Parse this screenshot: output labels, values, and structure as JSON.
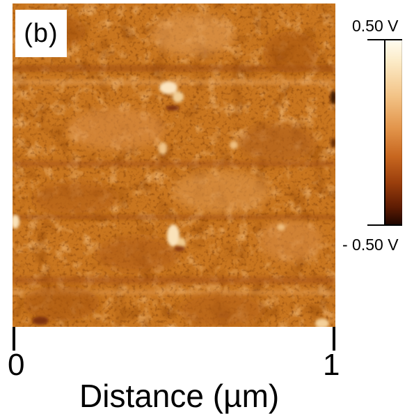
{
  "panel": {
    "label": "(b)"
  },
  "x_axis": {
    "tick_min": "0",
    "tick_max": "1",
    "title": "Distance (µm)"
  },
  "colorbar": {
    "max_label": "0.50 V",
    "min_label": "- 0.50 V",
    "colors": [
      "#fffdf3",
      "#f3c488",
      "#c7661f",
      "#5e1c03",
      "#1a0500"
    ]
  },
  "image": {
    "base_color": "#c9761f"
  }
}
